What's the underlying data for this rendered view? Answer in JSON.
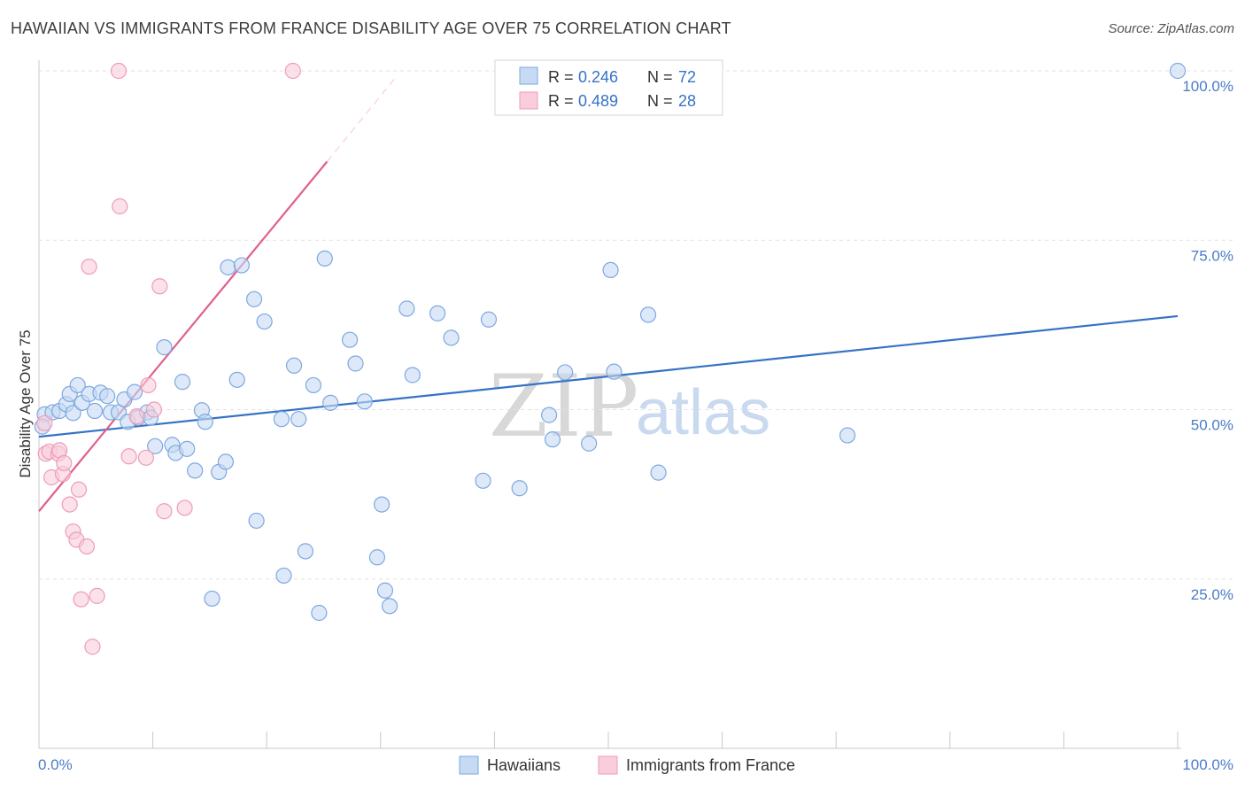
{
  "header": {
    "title": "HAWAIIAN VS IMMIGRANTS FROM FRANCE DISABILITY AGE OVER 75 CORRELATION CHART",
    "source": "Source: ZipAtlas.com"
  },
  "watermark": {
    "part1": "ZIP",
    "part2": "atlas"
  },
  "chart_data": {
    "type": "scatter",
    "title": "HAWAIIAN VS IMMIGRANTS FROM FRANCE DISABILITY AGE OVER 75 CORRELATION CHART",
    "xlabel": "",
    "ylabel": "Disability Age Over 75",
    "xlim": [
      0,
      100
    ],
    "ylim": [
      0,
      100
    ],
    "x_tick_labels": [
      "0.0%",
      "100.0%"
    ],
    "y_ticks": [
      {
        "value": 100,
        "label": "100.0%"
      },
      {
        "value": 75,
        "label": "75.0%"
      },
      {
        "value": 50,
        "label": "50.0%"
      },
      {
        "value": 25,
        "label": "25.0%"
      }
    ],
    "grid": true,
    "legend_position": "top-center",
    "stats": [
      {
        "r_label": "R = ",
        "r": "0.246",
        "n_label": "N = ",
        "n": "72"
      },
      {
        "r_label": "R = ",
        "r": "0.489",
        "n_label": "N = ",
        "n": "28"
      }
    ],
    "series": [
      {
        "name": "Hawaiians",
        "color": "#7ea8e0",
        "fill": "#c6daf3",
        "line_color": "#3572c6",
        "trend": {
          "x": [
            0,
            100
          ],
          "y": [
            46.0,
            63.8
          ]
        },
        "points": [
          [
            0.5,
            49.3
          ],
          [
            1.2,
            49.6
          ],
          [
            1.8,
            49.8
          ],
          [
            2.4,
            50.8
          ],
          [
            2.7,
            52.3
          ],
          [
            3.0,
            49.5
          ],
          [
            3.4,
            53.6
          ],
          [
            3.8,
            51.0
          ],
          [
            4.4,
            52.3
          ],
          [
            4.9,
            49.8
          ],
          [
            5.4,
            52.5
          ],
          [
            6.0,
            52.0
          ],
          [
            6.3,
            49.6
          ],
          [
            7.0,
            49.6
          ],
          [
            7.5,
            51.5
          ],
          [
            7.8,
            48.2
          ],
          [
            8.4,
            52.6
          ],
          [
            8.7,
            48.8
          ],
          [
            9.5,
            49.6
          ],
          [
            9.8,
            48.8
          ],
          [
            10.2,
            44.6
          ],
          [
            11.0,
            59.2
          ],
          [
            11.7,
            44.8
          ],
          [
            12.0,
            43.6
          ],
          [
            12.6,
            54.1
          ],
          [
            13.0,
            44.2
          ],
          [
            13.7,
            41.0
          ],
          [
            14.3,
            49.9
          ],
          [
            14.6,
            48.2
          ],
          [
            15.2,
            22.1
          ],
          [
            15.8,
            40.8
          ],
          [
            16.4,
            42.3
          ],
          [
            16.6,
            71.0
          ],
          [
            17.4,
            54.4
          ],
          [
            17.8,
            71.3
          ],
          [
            18.9,
            66.3
          ],
          [
            19.1,
            33.6
          ],
          [
            19.8,
            63.0
          ],
          [
            21.3,
            48.6
          ],
          [
            21.5,
            25.5
          ],
          [
            22.4,
            56.5
          ],
          [
            22.8,
            48.6
          ],
          [
            23.4,
            29.1
          ],
          [
            24.1,
            53.6
          ],
          [
            24.6,
            20.0
          ],
          [
            25.1,
            72.3
          ],
          [
            25.6,
            51.0
          ],
          [
            27.3,
            60.3
          ],
          [
            27.8,
            56.8
          ],
          [
            28.6,
            51.2
          ],
          [
            29.7,
            28.2
          ],
          [
            30.1,
            36.0
          ],
          [
            30.4,
            23.3
          ],
          [
            30.8,
            21.0
          ],
          [
            32.3,
            64.9
          ],
          [
            32.8,
            55.1
          ],
          [
            35.0,
            64.2
          ],
          [
            36.2,
            60.6
          ],
          [
            39.0,
            39.5
          ],
          [
            39.5,
            63.3
          ],
          [
            42.2,
            38.4
          ],
          [
            44.8,
            49.2
          ],
          [
            45.1,
            45.6
          ],
          [
            46.2,
            55.5
          ],
          [
            48.3,
            45.0
          ],
          [
            50.2,
            70.6
          ],
          [
            50.5,
            55.6
          ],
          [
            53.5,
            64.0
          ],
          [
            54.4,
            40.7
          ],
          [
            71.0,
            46.2
          ],
          [
            100.0,
            100.0
          ],
          [
            0.3,
            47.5
          ]
        ]
      },
      {
        "name": "Immigrants from France",
        "color": "#ee9cb8",
        "fill": "#f9cddb",
        "line_color": "#e0608e",
        "trend": {
          "x": [
            0,
            25.3
          ],
          "y": [
            35.0,
            86.6
          ]
        },
        "trend_dashed": {
          "x": [
            25.3,
            31.5
          ],
          "y": [
            86.6,
            99.4
          ]
        },
        "points": [
          [
            0.5,
            48.0
          ],
          [
            0.6,
            43.5
          ],
          [
            0.9,
            43.8
          ],
          [
            1.1,
            40.0
          ],
          [
            1.7,
            43.5
          ],
          [
            1.8,
            44.0
          ],
          [
            2.1,
            40.5
          ],
          [
            2.2,
            42.1
          ],
          [
            2.7,
            36.0
          ],
          [
            3.0,
            32.0
          ],
          [
            3.3,
            30.8
          ],
          [
            3.5,
            38.2
          ],
          [
            3.7,
            22.0
          ],
          [
            4.2,
            29.8
          ],
          [
            4.4,
            71.1
          ],
          [
            4.7,
            15.0
          ],
          [
            5.1,
            22.5
          ],
          [
            7.0,
            100.0
          ],
          [
            7.1,
            80.0
          ],
          [
            7.9,
            43.1
          ],
          [
            8.6,
            49.0
          ],
          [
            9.4,
            42.9
          ],
          [
            9.6,
            53.6
          ],
          [
            10.1,
            50.0
          ],
          [
            10.6,
            68.2
          ],
          [
            11.0,
            35.0
          ],
          [
            12.8,
            35.5
          ],
          [
            22.3,
            100.0
          ]
        ]
      }
    ]
  },
  "legend": {
    "items": [
      {
        "label": "Hawaiians"
      },
      {
        "label": "Immigrants from France"
      }
    ]
  }
}
